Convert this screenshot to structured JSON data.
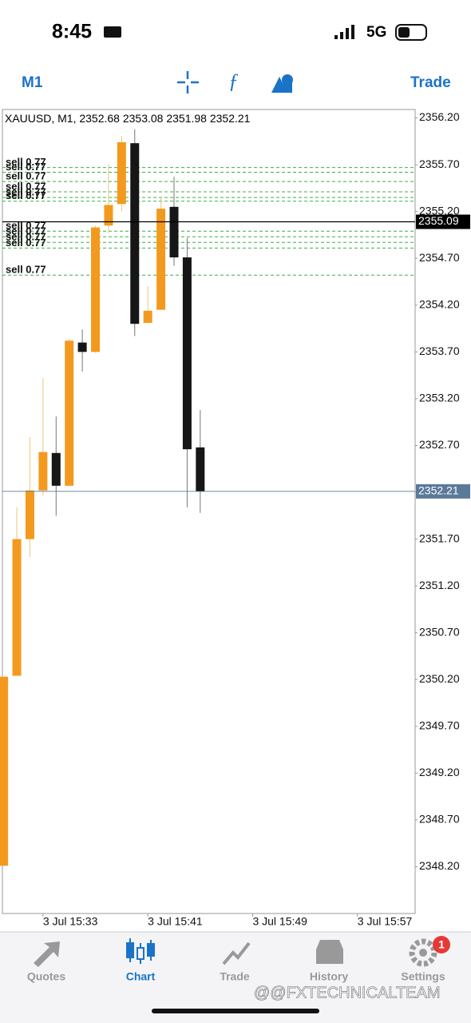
{
  "status_bar": {
    "time": "8:45",
    "network": "5G"
  },
  "toolbar": {
    "timeframe": "M1",
    "trade": "Trade"
  },
  "chart_data": {
    "type": "candlestick",
    "title": "XAUUSD, M1,",
    "open": [
      2348.21,
      2350.24,
      2351.7,
      2352.22,
      2352.62,
      2352.27,
      2353.8,
      2353.7,
      2355.05,
      2355.28,
      2355.93,
      2354.01,
      2354.15,
      2355.25,
      2354.71,
      2352.68
    ],
    "high": [
      2350.23,
      2352.04,
      2352.79,
      2353.42,
      2353.01,
      2353.84,
      2353.94,
      2355.05,
      2355.71,
      2356.01,
      2356.08,
      2354.4,
      2355.35,
      2355.57,
      2354.92,
      2353.08
    ],
    "low": [
      2348.21,
      2350.24,
      2351.51,
      2352.17,
      2351.95,
      2352.27,
      2353.49,
      2353.69,
      2354.97,
      2355.2,
      2353.87,
      2354.01,
      2354.15,
      2354.62,
      2352.04,
      2351.98
    ],
    "close": [
      2350.23,
      2351.7,
      2352.22,
      2352.63,
      2352.27,
      2353.82,
      2353.7,
      2355.03,
      2355.27,
      2355.94,
      2354.0,
      2354.14,
      2355.23,
      2354.71,
      2352.66,
      2352.21
    ],
    "up_color": "#f39a1e",
    "down_color": "#161616",
    "orders": [
      {
        "label": "sell 0.77",
        "price": 2355.67
      },
      {
        "label": "sell 0.77",
        "price": 2355.62
      },
      {
        "label": "sell 0.77",
        "price": 2355.52
      },
      {
        "label": "sell 0.77",
        "price": 2355.41
      },
      {
        "label": "sell 0.77",
        "price": 2355.35
      },
      {
        "label": "sell 0.77",
        "price": 2355.31
      },
      {
        "label": "sell 0.77",
        "price": 2354.99
      },
      {
        "label": "sell 0.77",
        "price": 2354.93
      },
      {
        "label": "sell 0.77",
        "price": 2354.87
      },
      {
        "label": "sell 0.77",
        "price": 2354.81
      },
      {
        "label": "sell 0.77",
        "price": 2354.52
      }
    ],
    "order_color": "#3cb043",
    "price_lines": [
      {
        "value": 2355.09,
        "color": "#000000"
      },
      {
        "value": 2352.21,
        "color": "#5b7a99"
      }
    ],
    "xlim": [
      -0.1,
      31.4
    ],
    "xticks": [
      {
        "value": 3,
        "label": "3 Jul 15:33"
      },
      {
        "value": 11,
        "label": "3 Jul 15:41"
      },
      {
        "value": 19,
        "label": "3 Jul 15:49"
      },
      {
        "value": 27,
        "label": "3 Jul 15:57"
      }
    ],
    "ylim": [
      2347.7,
      2356.29
    ],
    "yticks": [
      {
        "value": 2356.2,
        "label": "2356.20"
      },
      {
        "value": 2355.7,
        "label": "2355.70"
      },
      {
        "value": 2355.2,
        "label": "2355.20"
      },
      {
        "value": 2354.7,
        "label": "2354.70"
      },
      {
        "value": 2354.2,
        "label": "2354.20"
      },
      {
        "value": 2353.7,
        "label": "2353.70"
      },
      {
        "value": 2353.2,
        "label": "2353.20"
      },
      {
        "value": 2352.7,
        "label": "2352.70"
      },
      {
        "value": 2352.2,
        "label": "2352.20"
      },
      {
        "value": 2351.7,
        "label": "2351.70"
      },
      {
        "value": 2351.2,
        "label": "2351.20"
      },
      {
        "value": 2350.7,
        "label": "2350.70"
      },
      {
        "value": 2350.2,
        "label": "2350.20"
      },
      {
        "value": 2349.7,
        "label": "2349.70"
      },
      {
        "value": 2349.2,
        "label": "2349.20"
      },
      {
        "value": 2348.7,
        "label": "2348.70"
      },
      {
        "value": 2348.2,
        "label": "2348.20"
      }
    ],
    "grid": false
  },
  "tab_bar": {
    "tabs": [
      "Quotes",
      "Chart",
      "Trade",
      "History",
      "Settings"
    ],
    "active": 1,
    "badge": "1"
  },
  "watermark": "@@FXTECHNICALTEAM"
}
